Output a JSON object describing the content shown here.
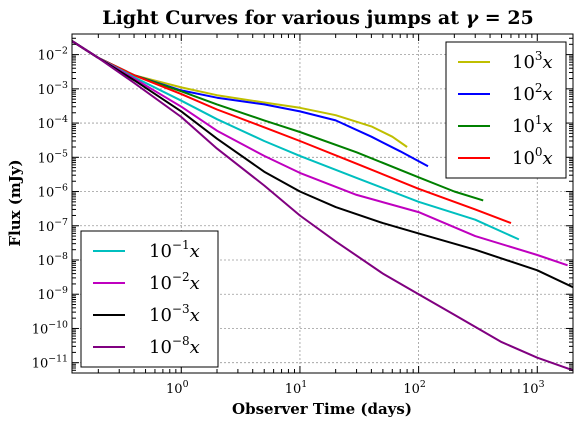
{
  "chart_data": {
    "type": "line",
    "title": "Light Curves for various jumps at γ = 25",
    "xlabel": "Observer Time (days)",
    "ylabel": "Flux (mJy)",
    "xscale": "log",
    "yscale": "log",
    "xlim": [
      0.12,
      2000
    ],
    "ylim": [
      5e-12,
      0.04
    ],
    "grid": true,
    "x_ticks": [
      {
        "value": 1,
        "base": "10",
        "exp": "0"
      },
      {
        "value": 10,
        "base": "10",
        "exp": "1"
      },
      {
        "value": 100,
        "base": "10",
        "exp": "2"
      },
      {
        "value": 1000,
        "base": "10",
        "exp": "3"
      }
    ],
    "y_ticks": [
      {
        "value": 1e-11,
        "base": "10",
        "exp": "−11"
      },
      {
        "value": 1e-10,
        "base": "10",
        "exp": "−10"
      },
      {
        "value": 1e-09,
        "base": "10",
        "exp": "−9"
      },
      {
        "value": 1e-08,
        "base": "10",
        "exp": "−8"
      },
      {
        "value": 1e-07,
        "base": "10",
        "exp": "−7"
      },
      {
        "value": 1e-06,
        "base": "10",
        "exp": "−6"
      },
      {
        "value": 1e-05,
        "base": "10",
        "exp": "−5"
      },
      {
        "value": 0.0001,
        "base": "10",
        "exp": "−4"
      },
      {
        "value": 0.001,
        "base": "10",
        "exp": "−3"
      },
      {
        "value": 0.01,
        "base": "10",
        "exp": "−2"
      }
    ],
    "legends": [
      {
        "placement": "top-right",
        "entries": [
          0,
          1,
          2,
          3
        ]
      },
      {
        "placement": "bottom-left",
        "entries": [
          4,
          5,
          6,
          7
        ]
      }
    ],
    "series": [
      {
        "name": "10^3 x",
        "base": "10",
        "exp": "3",
        "color": "#bfbf00",
        "points": [
          [
            0.12,
            0.025
          ],
          [
            0.2,
            0.008
          ],
          [
            0.4,
            0.0025
          ],
          [
            1,
            0.0011
          ],
          [
            2,
            0.00065
          ],
          [
            5,
            0.0004
          ],
          [
            10,
            0.00028
          ],
          [
            20,
            0.00017
          ],
          [
            40,
            8e-05
          ],
          [
            60,
            4e-05
          ],
          [
            80,
            2e-05
          ]
        ]
      },
      {
        "name": "10^2 x",
        "base": "10",
        "exp": "2",
        "color": "#0000ff",
        "points": [
          [
            0.12,
            0.025
          ],
          [
            0.2,
            0.008
          ],
          [
            0.4,
            0.0025
          ],
          [
            1,
            0.0009
          ],
          [
            2,
            0.00055
          ],
          [
            5,
            0.00035
          ],
          [
            10,
            0.00022
          ],
          [
            20,
            0.00012
          ],
          [
            40,
            4e-05
          ],
          [
            70,
            1.5e-05
          ],
          [
            120,
            5.5e-06
          ]
        ]
      },
      {
        "name": "10^1 x",
        "base": "10",
        "exp": "1",
        "color": "#008000",
        "points": [
          [
            0.12,
            0.025
          ],
          [
            0.2,
            0.008
          ],
          [
            0.4,
            0.0025
          ],
          [
            1,
            0.00085
          ],
          [
            2,
            0.00035
          ],
          [
            5,
            0.00012
          ],
          [
            10,
            5.5e-05
          ],
          [
            30,
            1.4e-05
          ],
          [
            100,
            2.6e-06
          ],
          [
            200,
            1e-06
          ],
          [
            350,
            5.5e-07
          ]
        ]
      },
      {
        "name": "10^0 x",
        "base": "10",
        "exp": "0",
        "color": "#ff0000",
        "points": [
          [
            0.12,
            0.025
          ],
          [
            0.2,
            0.008
          ],
          [
            0.4,
            0.0025
          ],
          [
            1,
            0.0007
          ],
          [
            2,
            0.00025
          ],
          [
            5,
            7.5e-05
          ],
          [
            10,
            3e-05
          ],
          [
            30,
            6.5e-06
          ],
          [
            100,
            1.2e-06
          ],
          [
            300,
            3e-07
          ],
          [
            600,
            1.2e-07
          ]
        ]
      },
      {
        "name": "10^-1 x",
        "base": "10",
        "exp": "−1",
        "color": "#00bfbf",
        "points": [
          [
            0.12,
            0.025
          ],
          [
            0.2,
            0.008
          ],
          [
            0.4,
            0.0022
          ],
          [
            1,
            0.00045
          ],
          [
            2,
            0.00013
          ],
          [
            5,
            3e-05
          ],
          [
            10,
            1.1e-05
          ],
          [
            30,
            2.5e-06
          ],
          [
            100,
            5e-07
          ],
          [
            300,
            1.5e-07
          ],
          [
            700,
            4e-08
          ]
        ]
      },
      {
        "name": "10^-2 x",
        "base": "10",
        "exp": "−2",
        "color": "#bf00bf",
        "points": [
          [
            0.12,
            0.025
          ],
          [
            0.2,
            0.008
          ],
          [
            0.4,
            0.002
          ],
          [
            1,
            0.0003
          ],
          [
            2,
            6e-05
          ],
          [
            5,
            1.1e-05
          ],
          [
            10,
            3.5e-06
          ],
          [
            30,
            8e-07
          ],
          [
            100,
            2.5e-07
          ],
          [
            300,
            5e-08
          ],
          [
            1000,
            1.4e-08
          ],
          [
            1800,
            7e-09
          ]
        ]
      },
      {
        "name": "10^-3 x",
        "base": "10",
        "exp": "−3",
        "color": "#000000",
        "points": [
          [
            0.12,
            0.025
          ],
          [
            0.2,
            0.008
          ],
          [
            0.4,
            0.0018
          ],
          [
            1,
            0.00022
          ],
          [
            2,
            3.5e-05
          ],
          [
            5,
            3.8e-06
          ],
          [
            10,
            1e-06
          ],
          [
            20,
            3.5e-07
          ],
          [
            50,
            1.2e-07
          ],
          [
            100,
            6e-08
          ],
          [
            300,
            2e-08
          ],
          [
            1000,
            5e-09
          ],
          [
            2000,
            1.6e-09
          ]
        ]
      },
      {
        "name": "10^-8 x",
        "base": "10",
        "exp": "−8",
        "color": "#800080",
        "points": [
          [
            0.12,
            0.025
          ],
          [
            0.2,
            0.008
          ],
          [
            0.4,
            0.0015
          ],
          [
            1,
            0.00015
          ],
          [
            2,
            1.8e-05
          ],
          [
            5,
            1.5e-06
          ],
          [
            10,
            2e-07
          ],
          [
            20,
            3.5e-08
          ],
          [
            50,
            4e-09
          ],
          [
            100,
            1e-09
          ],
          [
            200,
            2.5e-10
          ],
          [
            500,
            4e-11
          ],
          [
            1000,
            1.4e-11
          ],
          [
            2000,
            6e-12
          ]
        ]
      }
    ]
  }
}
